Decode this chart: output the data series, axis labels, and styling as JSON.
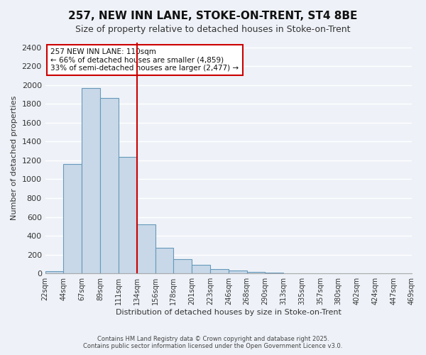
{
  "title_line1": "257, NEW INN LANE, STOKE-ON-TRENT, ST4 8BE",
  "title_line2": "Size of property relative to detached houses in Stoke-on-Trent",
  "xlabel": "Distribution of detached houses by size in Stoke-on-Trent",
  "ylabel": "Number of detached properties",
  "bin_labels": [
    "22sqm",
    "44sqm",
    "67sqm",
    "89sqm",
    "111sqm",
    "134sqm",
    "156sqm",
    "178sqm",
    "201sqm",
    "223sqm",
    "246sqm",
    "268sqm",
    "290sqm",
    "313sqm",
    "335sqm",
    "357sqm",
    "380sqm",
    "402sqm",
    "424sqm",
    "447sqm",
    "469sqm"
  ],
  "bar_heights": [
    25,
    1165,
    1970,
    1860,
    1240,
    520,
    270,
    150,
    90,
    45,
    35,
    20,
    10,
    5,
    5,
    5,
    5,
    5,
    5,
    5
  ],
  "bar_color": "#c8d8e8",
  "bar_edge_color": "#6699bb",
  "vline_color": "#cc0000",
  "annotation_text": "257 NEW INN LANE: 110sqm\n← 66% of detached houses are smaller (4,859)\n33% of semi-detached houses are larger (2,477) →",
  "annotation_box_color": "#ffffff",
  "annotation_box_edge": "#cc0000",
  "ylim": [
    0,
    2450
  ],
  "yticks": [
    0,
    200,
    400,
    600,
    800,
    1000,
    1200,
    1400,
    1600,
    1800,
    2000,
    2200,
    2400
  ],
  "background_color": "#eef2f8",
  "grid_color": "#ffffff",
  "footer_line1": "Contains HM Land Registry data © Crown copyright and database right 2025.",
  "footer_line2": "Contains public sector information licensed under the Open Government Licence v3.0."
}
